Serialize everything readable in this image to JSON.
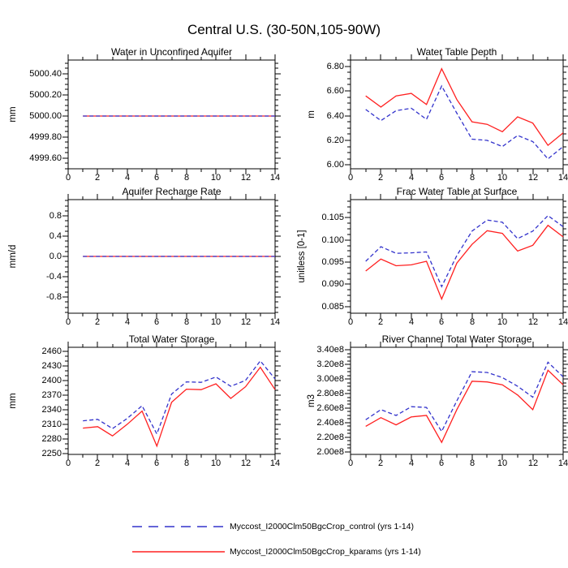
{
  "title": "Central U.S. (30-50N,105-90W)",
  "legend": {
    "entries": [
      {
        "label": "Myccost_I2000Clm50BgcCrop_control (yrs 1-14)",
        "color": "#3333cc",
        "style": "dashed"
      },
      {
        "label": "Myccost_I2000Clm50BgcCrop_kparams (yrs 1-14)",
        "color": "#ff2020",
        "style": "solid"
      }
    ]
  },
  "chart_data": [
    {
      "type": "line",
      "title": "Water in Unconfined Aquifer",
      "ylabel": "mm",
      "x": [
        1,
        2,
        3,
        4,
        5,
        6,
        7,
        8,
        9,
        10,
        11,
        12,
        13,
        14
      ],
      "xlim": [
        0,
        14
      ],
      "xticks": [
        0,
        2,
        4,
        6,
        8,
        10,
        12,
        14
      ],
      "xtick_labels": [
        "0",
        "2",
        "4",
        "6",
        "8",
        "10",
        "12",
        "14"
      ],
      "x_minor_per_gap": 1,
      "ylim": [
        4999.5,
        5000.53
      ],
      "yticks": [
        4999.6,
        4999.8,
        5000.0,
        5000.2,
        5000.4
      ],
      "ytick_labels": [
        "4999.60",
        "4999.80",
        "5000.00",
        "5000.20",
        "5000.40"
      ],
      "y_minor_per_gap": 3,
      "grid": false,
      "series": [
        {
          "name": "control",
          "color": "#3333cc",
          "style": "dashed",
          "values": [
            5000.0,
            5000.0,
            5000.0,
            5000.0,
            5000.0,
            5000.0,
            5000.0,
            5000.0,
            5000.0,
            5000.0,
            5000.0,
            5000.0,
            5000.0,
            5000.0
          ]
        },
        {
          "name": "kparams",
          "color": "#ff2020",
          "style": "solid",
          "values": [
            5000.0,
            5000.0,
            5000.0,
            5000.0,
            5000.0,
            5000.0,
            5000.0,
            5000.0,
            5000.0,
            5000.0,
            5000.0,
            5000.0,
            5000.0,
            5000.0
          ]
        }
      ]
    },
    {
      "type": "line",
      "title": "Water Table Depth",
      "ylabel": "m",
      "x": [
        1,
        2,
        3,
        4,
        5,
        6,
        7,
        8,
        9,
        10,
        11,
        12,
        13,
        14
      ],
      "xlim": [
        0,
        14
      ],
      "xticks": [
        0,
        2,
        4,
        6,
        8,
        10,
        12,
        14
      ],
      "xtick_labels": [
        "0",
        "2",
        "4",
        "6",
        "8",
        "10",
        "12",
        "14"
      ],
      "x_minor_per_gap": 1,
      "ylim": [
        5.97,
        6.85
      ],
      "yticks": [
        6.0,
        6.2,
        6.4,
        6.6,
        6.8
      ],
      "ytick_labels": [
        "6.00",
        "6.20",
        "6.40",
        "6.60",
        "6.80"
      ],
      "y_minor_per_gap": 3,
      "grid": false,
      "series": [
        {
          "name": "control",
          "color": "#3333cc",
          "style": "dashed",
          "values": [
            6.45,
            6.36,
            6.44,
            6.46,
            6.37,
            6.64,
            6.42,
            6.21,
            6.2,
            6.15,
            6.24,
            6.19,
            6.05,
            6.15
          ]
        },
        {
          "name": "kparams",
          "color": "#ff2020",
          "style": "solid",
          "values": [
            6.56,
            6.47,
            6.56,
            6.58,
            6.49,
            6.78,
            6.53,
            6.35,
            6.33,
            6.27,
            6.39,
            6.34,
            6.16,
            6.26
          ]
        }
      ]
    },
    {
      "type": "line",
      "title": "Aquifer Recharge Rate",
      "ylabel": "mm/d",
      "x": [
        1,
        2,
        3,
        4,
        5,
        6,
        7,
        8,
        9,
        10,
        11,
        12,
        13,
        14
      ],
      "xlim": [
        0,
        14
      ],
      "xticks": [
        0,
        2,
        4,
        6,
        8,
        10,
        12,
        14
      ],
      "xtick_labels": [
        "0",
        "2",
        "4",
        "6",
        "8",
        "10",
        "12",
        "14"
      ],
      "x_minor_per_gap": 1,
      "ylim": [
        -1.12,
        1.12
      ],
      "yticks": [
        -0.8,
        -0.4,
        0.0,
        0.4,
        0.8
      ],
      "ytick_labels": [
        "-0.8",
        "-0.4",
        "0.0",
        "0.4",
        "0.8"
      ],
      "y_minor_per_gap": 3,
      "grid": false,
      "series": [
        {
          "name": "control",
          "color": "#3333cc",
          "style": "dashed",
          "values": [
            0.0,
            0.0,
            0.0,
            0.0,
            0.0,
            0.0,
            0.0,
            0.0,
            0.0,
            0.0,
            0.0,
            0.0,
            0.0,
            0.0
          ]
        },
        {
          "name": "kparams",
          "color": "#ff2020",
          "style": "solid",
          "values": [
            0.0,
            0.0,
            0.0,
            0.0,
            0.0,
            0.0,
            0.0,
            0.0,
            0.0,
            0.0,
            0.0,
            0.0,
            0.0,
            0.0
          ]
        }
      ]
    },
    {
      "type": "line",
      "title": "Frac Water Table at Surface",
      "ylabel": "unitless [0-1]",
      "x": [
        1,
        2,
        3,
        4,
        5,
        6,
        7,
        8,
        9,
        10,
        11,
        12,
        13,
        14
      ],
      "xlim": [
        0,
        14
      ],
      "xticks": [
        0,
        2,
        4,
        6,
        8,
        10,
        12,
        14
      ],
      "xtick_labels": [
        "0",
        "2",
        "4",
        "6",
        "8",
        "10",
        "12",
        "14"
      ],
      "x_minor_per_gap": 1,
      "ylim": [
        0.0835,
        0.1091
      ],
      "yticks": [
        0.085,
        0.09,
        0.095,
        0.1,
        0.105
      ],
      "ytick_labels": [
        "0.085",
        "0.090",
        "0.095",
        "0.100",
        "0.105"
      ],
      "y_minor_per_gap": 3,
      "grid": false,
      "series": [
        {
          "name": "control",
          "color": "#3333cc",
          "style": "dashed",
          "values": [
            0.0952,
            0.0985,
            0.097,
            0.0971,
            0.0973,
            0.0895,
            0.0965,
            0.102,
            0.1045,
            0.104,
            0.1003,
            0.102,
            0.1055,
            0.103
          ]
        },
        {
          "name": "kparams",
          "color": "#ff2020",
          "style": "solid",
          "values": [
            0.093,
            0.0957,
            0.0942,
            0.0944,
            0.0952,
            0.0867,
            0.0948,
            0.099,
            0.1021,
            0.1015,
            0.0975,
            0.0988,
            0.1033,
            0.1007
          ]
        }
      ]
    },
    {
      "type": "line",
      "title": "Total Water Storage",
      "ylabel": "mm",
      "x": [
        1,
        2,
        3,
        4,
        5,
        6,
        7,
        8,
        9,
        10,
        11,
        12,
        13,
        14
      ],
      "xlim": [
        0,
        14
      ],
      "xticks": [
        0,
        2,
        4,
        6,
        8,
        10,
        12,
        14
      ],
      "xtick_labels": [
        "0",
        "2",
        "4",
        "6",
        "8",
        "10",
        "12",
        "14"
      ],
      "x_minor_per_gap": 1,
      "ylim": [
        2248,
        2468
      ],
      "yticks": [
        2250,
        2280,
        2310,
        2340,
        2370,
        2400,
        2430,
        2460
      ],
      "ytick_labels": [
        "2250",
        "2280",
        "2310",
        "2340",
        "2370",
        "2400",
        "2430",
        "2460"
      ],
      "y_minor_per_gap": 2,
      "grid": false,
      "series": [
        {
          "name": "control",
          "color": "#3333cc",
          "style": "dashed",
          "values": [
            2317,
            2320,
            2301,
            2322,
            2348,
            2290,
            2372,
            2397,
            2396,
            2407,
            2388,
            2400,
            2440,
            2403
          ]
        },
        {
          "name": "kparams",
          "color": "#ff2020",
          "style": "solid",
          "values": [
            2302,
            2305,
            2286,
            2310,
            2337,
            2265,
            2355,
            2382,
            2381,
            2393,
            2363,
            2387,
            2427,
            2381
          ]
        }
      ]
    },
    {
      "type": "line",
      "title": "River Channel Total Water Storage",
      "ylabel": "m3",
      "x": [
        1,
        2,
        3,
        4,
        5,
        6,
        7,
        8,
        9,
        10,
        11,
        12,
        13,
        14
      ],
      "xlim": [
        0,
        14
      ],
      "xticks": [
        0,
        2,
        4,
        6,
        8,
        10,
        12,
        14
      ],
      "xtick_labels": [
        "0",
        "2",
        "4",
        "6",
        "8",
        "10",
        "12",
        "14"
      ],
      "x_minor_per_gap": 1,
      "ylim": [
        196500000,
        343500000
      ],
      "yticks": [
        200000000,
        220000000,
        240000000,
        260000000,
        280000000,
        300000000,
        320000000,
        340000000
      ],
      "ytick_labels": [
        "2.00e8",
        "2.20e8",
        "2.40e8",
        "2.60e8",
        "2.80e8",
        "3.00e8",
        "3.20e8",
        "3.40e8"
      ],
      "y_minor_per_gap": 3,
      "grid": false,
      "series": [
        {
          "name": "control",
          "color": "#3333cc",
          "style": "dashed",
          "values": [
            244000000,
            258000000,
            250000000,
            262000000,
            261000000,
            228000000,
            270000000,
            310000000,
            309000000,
            302000000,
            290000000,
            275000000,
            323000000,
            303000000
          ]
        },
        {
          "name": "kparams",
          "color": "#ff2020",
          "style": "solid",
          "values": [
            235000000,
            247000000,
            237000000,
            248000000,
            250000000,
            213000000,
            258000000,
            297000000,
            296000000,
            292000000,
            278000000,
            258000000,
            312000000,
            292000000
          ]
        }
      ]
    }
  ]
}
